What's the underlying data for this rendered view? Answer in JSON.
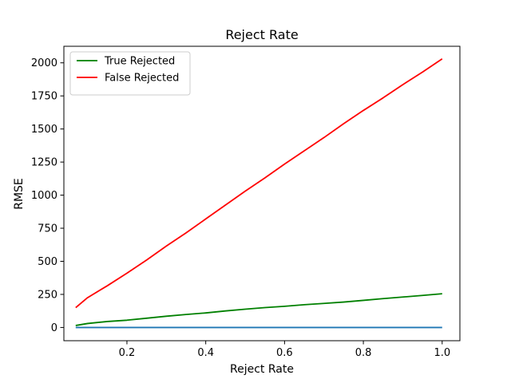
{
  "chart_data": {
    "type": "line",
    "title": "Reject Rate",
    "xlabel": "Reject Rate",
    "ylabel": "RMSE",
    "xlim": [
      0.04,
      1.045
    ],
    "ylim": [
      -100,
      2125
    ],
    "xticks": [
      0.2,
      0.4,
      0.6,
      0.8,
      1.0
    ],
    "xtick_labels": [
      "0.2",
      "0.4",
      "0.6",
      "0.8",
      "1.0"
    ],
    "yticks": [
      0,
      250,
      500,
      750,
      1000,
      1250,
      1500,
      1750,
      2000
    ],
    "ytick_labels": [
      "0",
      "250",
      "500",
      "750",
      "1000",
      "1250",
      "1500",
      "1750",
      "2000"
    ],
    "grid": false,
    "legend": "top-left",
    "series": [
      {
        "name": "True Rejected",
        "color": "#008000",
        "in_legend": true,
        "x": [
          0.07,
          0.1,
          0.15,
          0.2,
          0.25,
          0.3,
          0.35,
          0.4,
          0.45,
          0.5,
          0.55,
          0.6,
          0.65,
          0.7,
          0.75,
          0.8,
          0.85,
          0.9,
          0.95,
          1.0
        ],
        "y": [
          15,
          30,
          45,
          55,
          70,
          85,
          98,
          110,
          125,
          138,
          150,
          160,
          172,
          182,
          192,
          205,
          218,
          230,
          242,
          255
        ]
      },
      {
        "name": "False Rejected",
        "color": "#ff0000",
        "in_legend": true,
        "x": [
          0.07,
          0.1,
          0.15,
          0.2,
          0.25,
          0.3,
          0.35,
          0.4,
          0.45,
          0.5,
          0.55,
          0.6,
          0.65,
          0.7,
          0.75,
          0.8,
          0.85,
          0.9,
          0.95,
          1.0
        ],
        "y": [
          150,
          225,
          315,
          410,
          510,
          615,
          715,
          820,
          925,
          1030,
          1130,
          1235,
          1335,
          1435,
          1540,
          1640,
          1735,
          1835,
          1930,
          2030
        ]
      },
      {
        "name": "",
        "color": "#1f77b4",
        "in_legend": false,
        "x": [
          0.07,
          0.2,
          0.4,
          0.6,
          0.8,
          1.0
        ],
        "y": [
          0,
          0,
          0,
          0,
          0,
          0
        ]
      }
    ]
  }
}
